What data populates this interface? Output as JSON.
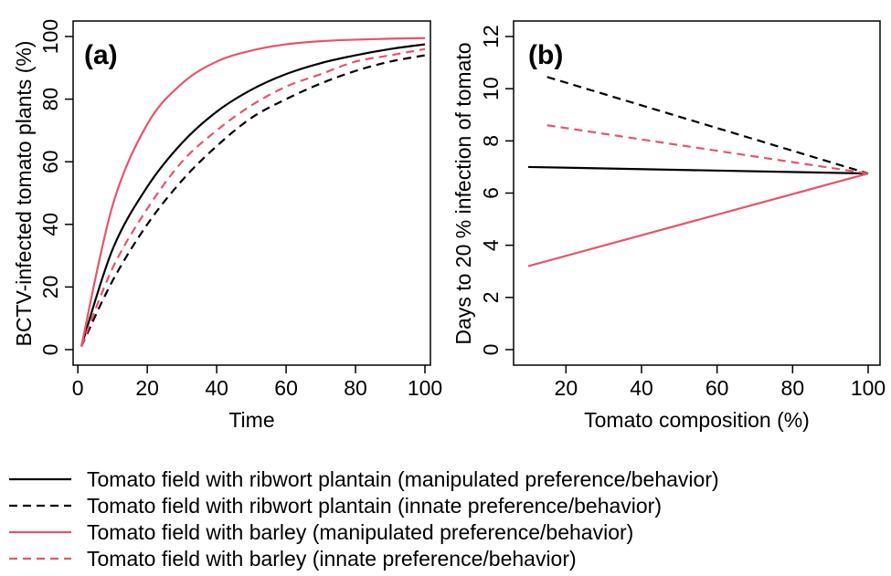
{
  "colors": {
    "black": "#000000",
    "red": "#e8536b"
  },
  "legend": {
    "items": [
      {
        "label": "Tomato field with ribwort plantain (manipulated preference/behavior)",
        "color": "#000000",
        "dashed": false
      },
      {
        "label": "Tomato field with ribwort plantain (innate preference/behavior)",
        "color": "#000000",
        "dashed": true
      },
      {
        "label": "Tomato field with barley (manipulated preference/behavior)",
        "color": "#e8536b",
        "dashed": false
      },
      {
        "label": "Tomato field with barley (innate preference/behavior)",
        "color": "#e8536b",
        "dashed": true
      }
    ]
  },
  "chart_data": [
    {
      "panel_label": "(a)",
      "type": "line",
      "xlabel": "Time",
      "ylabel": "BCTV-infected tomato plants (%)",
      "xlim": [
        1,
        100
      ],
      "ylim": [
        0,
        100
      ],
      "xticks": [
        0,
        20,
        40,
        60,
        80,
        100
      ],
      "yticks": [
        0,
        20,
        40,
        60,
        80,
        100
      ],
      "x": [
        1,
        10,
        20,
        30,
        40,
        50,
        60,
        70,
        80,
        90,
        100
      ],
      "series": [
        {
          "color": "#000000",
          "dashed": false,
          "values": [
            1,
            32,
            52,
            66,
            76,
            83,
            88,
            91.5,
            94,
            96,
            97.5
          ]
        },
        {
          "color": "#000000",
          "dashed": true,
          "values": [
            1,
            22,
            40,
            54,
            65,
            74,
            80,
            85,
            89,
            92,
            94
          ]
        },
        {
          "color": "#e8536b",
          "dashed": false,
          "values": [
            1,
            46,
            72,
            85,
            92,
            95.5,
            97.5,
            98.5,
            99,
            99.3,
            99.5
          ]
        },
        {
          "color": "#e8536b",
          "dashed": true,
          "values": [
            1,
            26,
            45,
            60,
            70,
            78,
            84,
            88,
            92,
            94,
            96
          ]
        }
      ]
    },
    {
      "panel_label": "(b)",
      "type": "line",
      "xlabel": "Tomato composition (%)",
      "ylabel": "Days to  20 % infection of tomato",
      "xlim": [
        10,
        100
      ],
      "ylim": [
        0,
        12
      ],
      "xticks": [
        20,
        40,
        60,
        80,
        100
      ],
      "yticks": [
        0,
        2,
        4,
        6,
        8,
        10,
        12
      ],
      "series": [
        {
          "color": "#000000",
          "dashed": false,
          "x": [
            10,
            100
          ],
          "values": [
            7.0,
            6.75
          ]
        },
        {
          "color": "#000000",
          "dashed": true,
          "x": [
            15,
            100
          ],
          "values": [
            10.45,
            6.75
          ]
        },
        {
          "color": "#e8536b",
          "dashed": false,
          "x": [
            10,
            100
          ],
          "values": [
            3.2,
            6.75
          ]
        },
        {
          "color": "#e8536b",
          "dashed": true,
          "x": [
            15,
            100
          ],
          "values": [
            8.6,
            6.75
          ]
        }
      ]
    }
  ]
}
